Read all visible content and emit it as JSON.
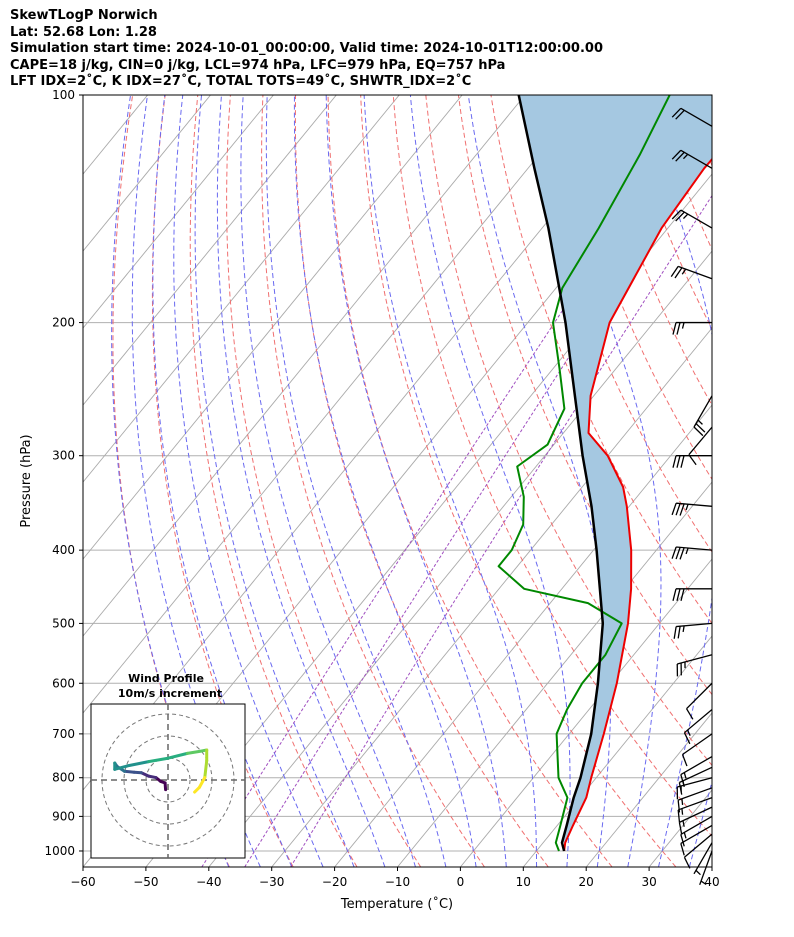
{
  "header": {
    "line1": "SkewTLogP Norwich",
    "line2": "Lat: 52.68   Lon: 1.28",
    "line3": "Simulation start time: 2024-10-01_00:00:00, Valid time: 2024-10-01T12:00:00.00",
    "line4": "CAPE=18 j/kg, CIN=0 j/kg, LCL=974 hPa, LFC=979 hPa, EQ=757 hPa",
    "line5": "LFT IDX=2˚C, K IDX=27˚C, TOTAL TOTS=49˚C, SHWTR_IDX=2˚C"
  },
  "colors": {
    "temperature": "#ee0000",
    "dewpoint": "#008800",
    "parcel": "#000000",
    "cape_fill": "#a5c8e1",
    "dry_adiabat": "#f07070",
    "moist_adiabat": "#6a6af0",
    "mixing_ratio": "#a04fc0",
    "isotherm": "#aaaaaa"
  },
  "chart_data": {
    "type": "line",
    "title": "",
    "xlabel": "Temperature (˚C)",
    "ylabel": "Pressure (hPa)",
    "xlim": [
      -60,
      40
    ],
    "ylim": [
      1050,
      100
    ],
    "y_scale": "log",
    "grid": true,
    "x_ticks": [
      "−60",
      "−50",
      "−40",
      "−30",
      "−20",
      "−10",
      "0",
      "10",
      "20",
      "30",
      "40"
    ],
    "y_ticks": [
      "100",
      "200",
      "300",
      "400",
      "500",
      "600",
      "700",
      "800",
      "900",
      "1000"
    ],
    "series": [
      {
        "name": "Temperature",
        "pressure": [
          1000,
          975,
          925,
          850,
          800,
          700,
          600,
          500,
          450,
          400,
          350,
          330,
          300,
          280,
          250,
          200,
          150,
          125,
          100
        ],
        "temperature": [
          14.4,
          13.5,
          12.5,
          11.0,
          9.2,
          5.5,
          1.0,
          -5.0,
          -9.0,
          -14.0,
          -20.4,
          -23.5,
          -30.0,
          -36.0,
          -40.5,
          -47.0,
          -51.0,
          -52.0,
          -51.5
        ]
      },
      {
        "name": "Dewpoint",
        "pressure": [
          1000,
          975,
          925,
          850,
          800,
          700,
          650,
          600,
          550,
          500,
          470,
          450,
          420,
          400,
          370,
          340,
          310,
          290,
          260,
          230,
          200,
          180,
          150,
          120,
          100
        ],
        "temperature": [
          13.6,
          12.0,
          10.5,
          8.0,
          4.0,
          -2.0,
          -3.5,
          -4.5,
          -4.5,
          -6.0,
          -14.0,
          -26.0,
          -33.0,
          -33.0,
          -34.5,
          -38.0,
          -43.0,
          -41.0,
          -43.0,
          -49.0,
          -56.0,
          -59.0,
          -61.0,
          -64.0,
          -67.0
        ]
      },
      {
        "name": "Parcel",
        "pressure": [
          1000,
          975,
          925,
          850,
          800,
          700,
          600,
          500,
          400,
          350,
          300,
          250,
          200,
          150,
          125,
          100
        ],
        "temperature": [
          14.4,
          13.0,
          11.5,
          9.0,
          7.5,
          3.5,
          -2.0,
          -9.0,
          -19.5,
          -26.0,
          -34.0,
          -43.0,
          -54.0,
          -69.0,
          -79.0,
          -91.0
        ]
      }
    ],
    "shaded_area": {
      "name": "CAPE",
      "between": [
        "Parcel",
        "Temperature"
      ],
      "from_pressure": 975,
      "to_pressure": 100
    },
    "wind_barbs": [
      {
        "pressure": 1000,
        "speed_kt": 5,
        "dir_deg": 200
      },
      {
        "pressure": 975,
        "speed_kt": 5,
        "dir_deg": 210
      },
      {
        "pressure": 950,
        "speed_kt": 10,
        "dir_deg": 230
      },
      {
        "pressure": 925,
        "speed_kt": 10,
        "dir_deg": 240
      },
      {
        "pressure": 900,
        "speed_kt": 15,
        "dir_deg": 240
      },
      {
        "pressure": 875,
        "speed_kt": 15,
        "dir_deg": 245
      },
      {
        "pressure": 850,
        "speed_kt": 15,
        "dir_deg": 250
      },
      {
        "pressure": 825,
        "speed_kt": 15,
        "dir_deg": 250
      },
      {
        "pressure": 800,
        "speed_kt": 15,
        "dir_deg": 255
      },
      {
        "pressure": 775,
        "speed_kt": 15,
        "dir_deg": 245
      },
      {
        "pressure": 750,
        "speed_kt": 15,
        "dir_deg": 240
      },
      {
        "pressure": 700,
        "speed_kt": 10,
        "dir_deg": 235
      },
      {
        "pressure": 650,
        "speed_kt": 15,
        "dir_deg": 230
      },
      {
        "pressure": 600,
        "speed_kt": 10,
        "dir_deg": 225
      },
      {
        "pressure": 550,
        "speed_kt": 25,
        "dir_deg": 255
      },
      {
        "pressure": 500,
        "speed_kt": 25,
        "dir_deg": 265
      },
      {
        "pressure": 450,
        "speed_kt": 30,
        "dir_deg": 270
      },
      {
        "pressure": 400,
        "speed_kt": 35,
        "dir_deg": 275
      },
      {
        "pressure": 350,
        "speed_kt": 35,
        "dir_deg": 275
      },
      {
        "pressure": 300,
        "speed_kt": 30,
        "dir_deg": 270
      },
      {
        "pressure": 275,
        "speed_kt": 10,
        "dir_deg": 220
      },
      {
        "pressure": 250,
        "speed_kt": 25,
        "dir_deg": 210
      },
      {
        "pressure": 200,
        "speed_kt": 25,
        "dir_deg": 270
      },
      {
        "pressure": 175,
        "speed_kt": 25,
        "dir_deg": 290
      },
      {
        "pressure": 150,
        "speed_kt": 25,
        "dir_deg": 300
      },
      {
        "pressure": 125,
        "speed_kt": 25,
        "dir_deg": 300
      },
      {
        "pressure": 110,
        "speed_kt": 20,
        "dir_deg": 300
      }
    ]
  },
  "hodograph": {
    "title": "Wind Profile",
    "subtitle": "10m/s increment",
    "ring_increment_ms": 10,
    "rings": 3,
    "points": [
      {
        "u": -0.5,
        "v": -2.0
      },
      {
        "u": -0.6,
        "v": -0.6
      },
      {
        "u": -1.5,
        "v": -0.3
      },
      {
        "u": -2.5,
        "v": 0.5
      },
      {
        "u": -4.0,
        "v": 0.8
      },
      {
        "u": -5.5,
        "v": 1.5
      },
      {
        "u": -7.0,
        "v": 1.6
      },
      {
        "u": -9.0,
        "v": 1.8
      },
      {
        "u": -10.5,
        "v": 2.8
      },
      {
        "u": -11.0,
        "v": 3.5
      },
      {
        "u": -11.0,
        "v": 2.2
      },
      {
        "u": -8.0,
        "v": 3.0
      },
      {
        "u": -4.0,
        "v": 3.8
      },
      {
        "u": 0.0,
        "v": 4.5
      },
      {
        "u": 4.0,
        "v": 5.5
      },
      {
        "u": 7.0,
        "v": 6.0
      },
      {
        "u": 8.0,
        "v": 6.2
      },
      {
        "u": 8.0,
        "v": 4.0
      },
      {
        "u": 7.6,
        "v": 0.5
      },
      {
        "u": 6.5,
        "v": -1.5
      },
      {
        "u": 5.5,
        "v": -2.5
      }
    ]
  }
}
